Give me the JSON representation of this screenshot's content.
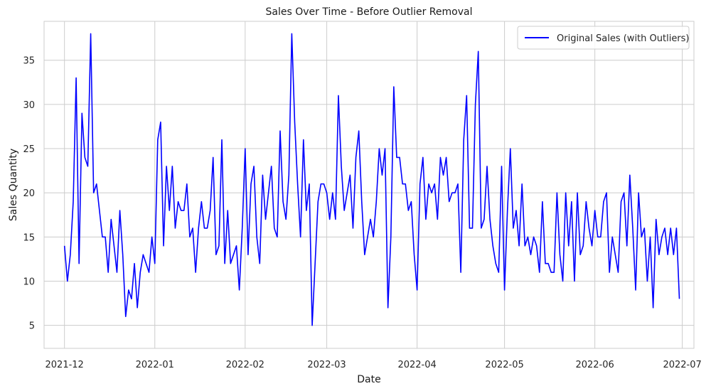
{
  "chart_data": {
    "type": "line",
    "title": "Sales Over Time - Before Outlier Removal",
    "xlabel": "Date",
    "ylabel": "Sales Quantity",
    "x_tick_labels": [
      "2021-12",
      "2022-01",
      "2022-02",
      "2022-03",
      "2022-04",
      "2022-05",
      "2022-06",
      "2022-07"
    ],
    "y_ticks": [
      5,
      10,
      15,
      20,
      25,
      30,
      35
    ],
    "ylim": [
      2.4,
      39.4
    ],
    "xlim": [
      "2021-11-24",
      "2022-07-05"
    ],
    "grid": true,
    "legend_position": "top-right",
    "series": [
      {
        "name": "Original Sales (with Outliers)",
        "color": "#0000ff",
        "x_start": "2021-12-01",
        "x_end": "2022-06-30",
        "values": [
          14,
          10,
          13,
          19,
          33,
          12,
          29,
          24,
          23,
          38,
          20,
          21,
          18,
          15,
          15,
          11,
          17,
          14,
          11,
          18,
          13,
          6,
          9,
          8,
          12,
          7,
          11,
          13,
          12,
          11,
          15,
          12,
          26,
          28,
          14,
          23,
          18,
          23,
          16,
          19,
          18,
          18,
          21,
          15,
          16,
          11,
          16,
          19,
          16,
          16,
          18,
          24,
          13,
          14,
          26,
          12,
          18,
          12,
          13,
          14,
          9,
          16,
          25,
          13,
          21,
          23,
          15,
          12,
          22,
          17,
          20,
          23,
          16,
          15,
          27,
          19,
          17,
          22,
          38,
          28,
          21,
          15,
          26,
          18,
          21,
          5,
          12,
          19,
          21,
          21,
          20,
          17,
          20,
          17,
          31,
          23,
          18,
          20,
          22,
          16,
          24,
          27,
          19,
          13,
          15,
          17,
          15,
          19,
          25,
          22,
          25,
          7,
          15,
          32,
          24,
          24,
          21,
          21,
          18,
          19,
          13,
          9,
          21,
          24,
          17,
          21,
          20,
          21,
          17,
          24,
          22,
          24,
          19,
          20,
          20,
          21,
          11,
          26,
          31,
          16,
          16,
          30,
          36,
          16,
          17,
          23,
          17,
          14,
          12,
          11,
          23,
          9,
          18,
          25,
          16,
          18,
          14,
          21,
          14,
          15,
          13,
          15,
          14,
          11,
          19,
          12,
          12,
          11,
          11,
          20,
          13,
          10,
          20,
          14,
          19,
          10,
          20,
          13,
          14,
          19,
          16,
          14,
          18,
          15,
          15,
          19,
          20,
          11,
          15,
          13,
          11,
          19,
          20,
          14,
          22,
          16,
          9,
          20,
          15,
          16,
          10,
          15,
          7,
          17,
          13,
          15,
          16,
          13,
          16,
          13,
          16,
          8
        ]
      }
    ]
  }
}
